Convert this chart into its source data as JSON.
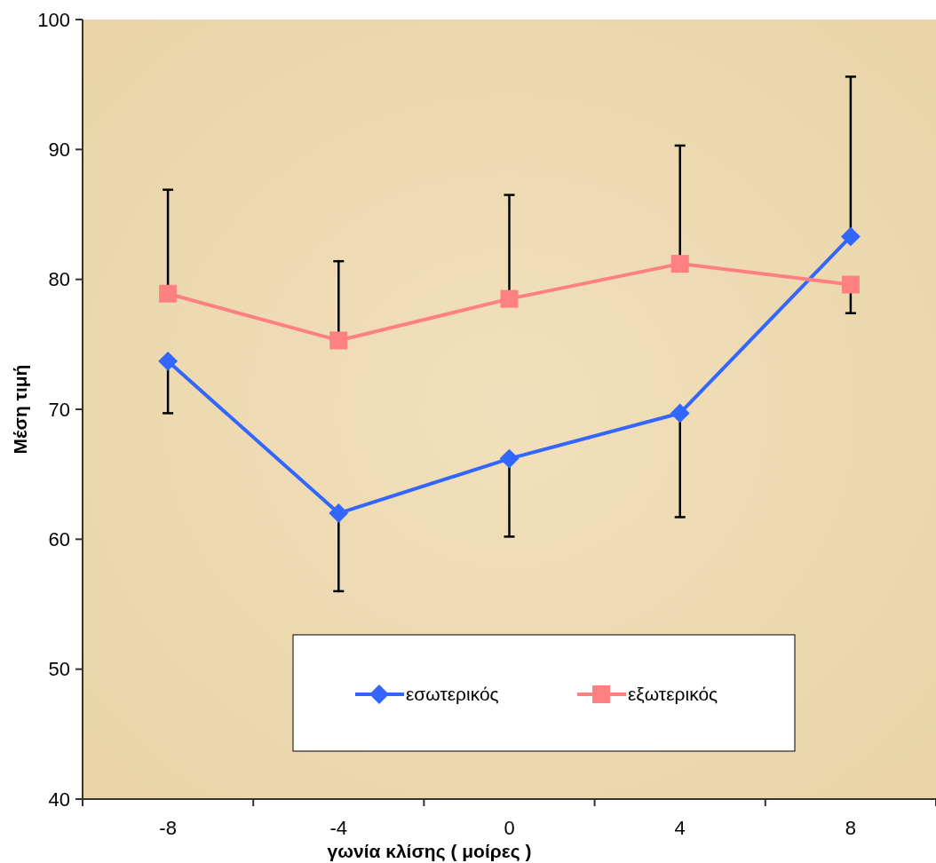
{
  "chart_data": {
    "type": "line",
    "xlabel": "γωνία κλίσης ( μοίρες )",
    "ylabel": "Μέση τιμή",
    "categories": [
      "-8",
      "-4",
      "0",
      "4",
      "8"
    ],
    "ylim": [
      40,
      100
    ],
    "yticks": [
      40,
      50,
      60,
      70,
      80,
      90,
      100
    ],
    "grid": false,
    "legend": "bottom",
    "series": [
      {
        "name": "εσωτερικός",
        "color": "#3366ff",
        "marker": "diamond",
        "values": [
          73.7,
          62.0,
          66.2,
          69.7,
          83.3
        ],
        "errors": [
          [
            69.7,
            73.7
          ],
          [
            56.0,
            62.0
          ],
          [
            60.2,
            66.2
          ],
          [
            61.7,
            69.7
          ],
          [
            83.3,
            95.6
          ]
        ]
      },
      {
        "name": "εξωτερικός",
        "color": "#ff8080",
        "marker": "square",
        "values": [
          78.9,
          75.3,
          78.5,
          81.2,
          79.6
        ],
        "errors": [
          [
            78.9,
            86.9
          ],
          [
            75.3,
            81.4
          ],
          [
            78.5,
            86.5
          ],
          [
            81.2,
            90.3
          ],
          [
            77.4,
            79.6
          ]
        ]
      }
    ]
  }
}
